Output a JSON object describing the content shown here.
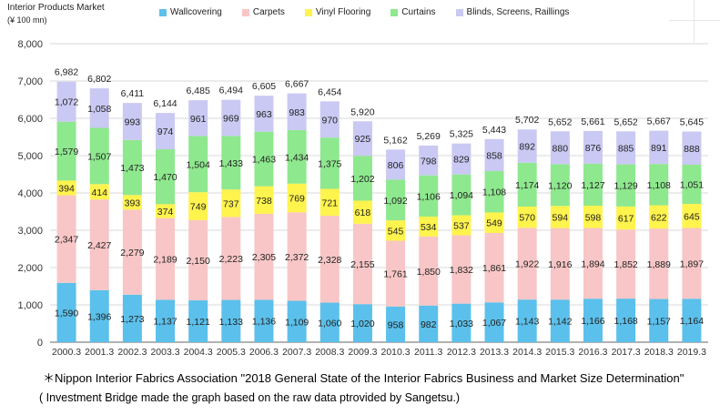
{
  "title": "Interior Products Market",
  "unit": "(¥ 100 mn)",
  "note_source": "＊Nippon Interior Fabrics Association \"2018 General State of the Interior Fabrics Business and Market Size Determination\"",
  "note_credit": "( Investment Bridge made the graph based on the raw data ptrovided by Sangetsu.)",
  "chart_data": {
    "type": "bar",
    "stacked": true,
    "title": "Interior Products Market",
    "ylabel": "(¥ 100 mn)",
    "xlabel": "",
    "ylim": [
      0,
      8000
    ],
    "yticks": [
      0,
      1000,
      2000,
      3000,
      4000,
      5000,
      6000,
      7000,
      8000
    ],
    "ytick_labels": [
      "0",
      "1,000",
      "2,000",
      "3,000",
      "4,000",
      "5,000",
      "6,000",
      "7,000",
      "8,000"
    ],
    "grid": true,
    "legend_position": "top",
    "categories": [
      "2000.3",
      "2001.3",
      "2002.3",
      "2003.3",
      "2004.3",
      "2005.3",
      "2006.3",
      "2007.3",
      "2008.3",
      "2009.3",
      "2010.3",
      "2011.3",
      "2012.3",
      "2013.3",
      "2014.3",
      "2015.3",
      "2016.3",
      "2017.3",
      "2018.3",
      "2019.3"
    ],
    "series": [
      {
        "name": "Wallcovering",
        "color": "#5BC0EB",
        "values": [
          1590,
          1396,
          1273,
          1137,
          1121,
          1133,
          1136,
          1109,
          1060,
          1020,
          958,
          982,
          1033,
          1067,
          1143,
          1142,
          1166,
          1168,
          1157,
          1164
        ]
      },
      {
        "name": "Carpets",
        "color": "#F8C6C6",
        "values": [
          2347,
          2427,
          2279,
          2189,
          2150,
          2223,
          2305,
          2372,
          2328,
          2155,
          1761,
          1850,
          1832,
          1861,
          1922,
          1916,
          1894,
          1852,
          1889,
          1897
        ]
      },
      {
        "name": "Vinyl Flooring",
        "color": "#FFF34D",
        "values": [
          394,
          414,
          393,
          374,
          749,
          737,
          738,
          769,
          721,
          618,
          545,
          534,
          537,
          549,
          570,
          594,
          598,
          617,
          622,
          645
        ]
      },
      {
        "name": "Curtains",
        "color": "#8EE88E",
        "values": [
          1579,
          1507,
          1473,
          1470,
          1504,
          1433,
          1463,
          1434,
          1375,
          1202,
          1092,
          1106,
          1094,
          1108,
          1174,
          1120,
          1127,
          1129,
          1108,
          1051
        ]
      },
      {
        "name": "Blinds, Screens, Raillings",
        "color": "#C9C9F3",
        "values": [
          1072,
          1058,
          993,
          974,
          961,
          969,
          963,
          983,
          970,
          925,
          806,
          798,
          829,
          858,
          892,
          880,
          876,
          885,
          891,
          888
        ]
      }
    ],
    "totals": [
      6982,
      6802,
      6411,
      6144,
      6485,
      6494,
      6605,
      6667,
      6454,
      5920,
      5162,
      5269,
      5325,
      5443,
      5702,
      5652,
      5661,
      5652,
      5667,
      5645
    ],
    "axis_color": "#666666",
    "grid_color": "#d9d9d9"
  }
}
